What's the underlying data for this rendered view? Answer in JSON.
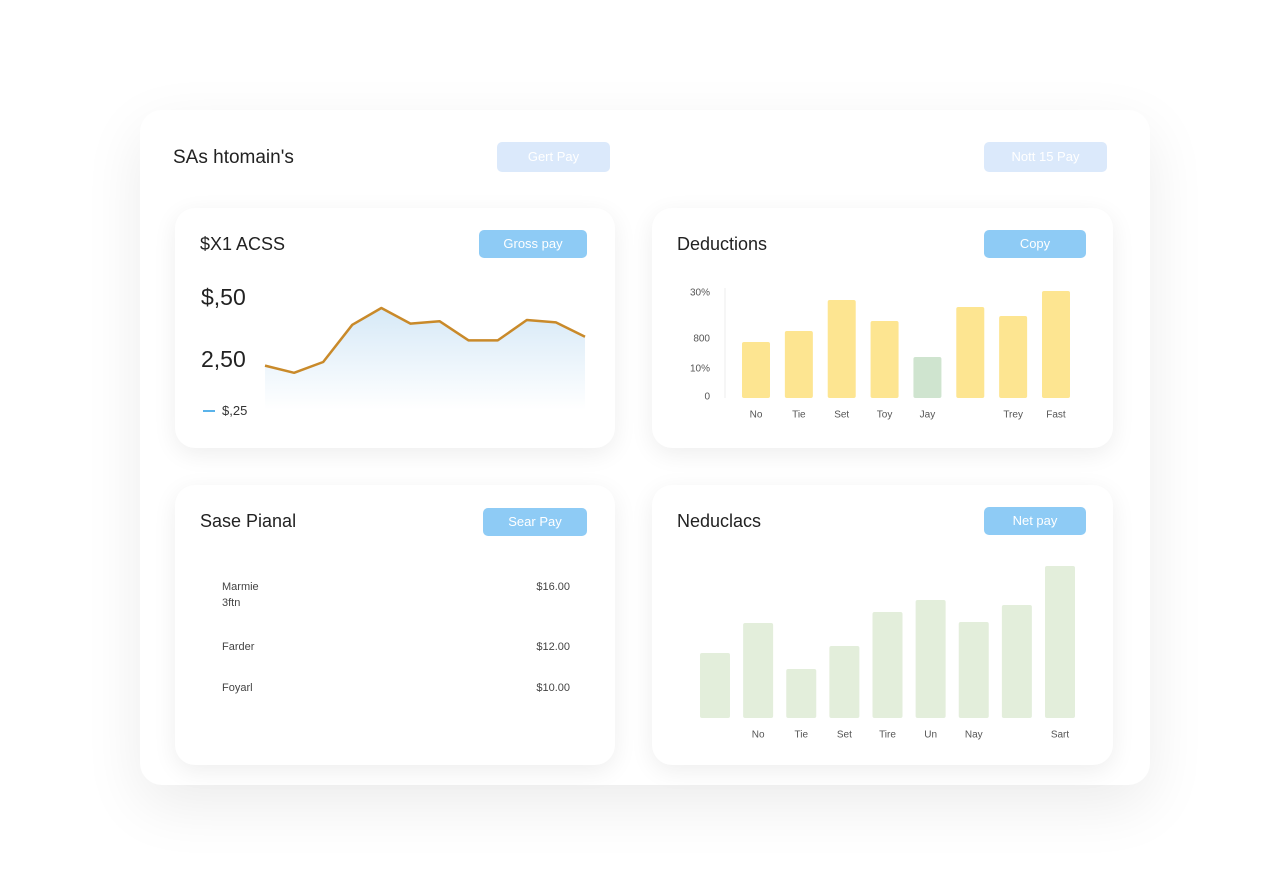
{
  "header": {
    "title": "SAs htomain's",
    "buttons": [
      "Gert Pay",
      "Nott 15 Pay"
    ]
  },
  "line_panel": {
    "title": "$X1 ACSS",
    "button": "Gross pay",
    "labels": [
      "$,50",
      "2,50",
      "$,25"
    ],
    "chart_data": {
      "type": "line",
      "color": "#c98a2a",
      "ylim": [
        0,
        100
      ],
      "values": [
        37,
        31,
        40,
        71,
        85,
        72,
        74,
        58,
        58,
        75,
        73,
        61
      ]
    }
  },
  "deductions_panel": {
    "title": "Deductions",
    "button": "Copy",
    "axis_labels": [
      "30%",
      "800",
      "10%",
      "0"
    ],
    "chart_data": {
      "type": "bar",
      "ylim": [
        0,
        120
      ],
      "categories": [
        "No",
        "Tie",
        "Set",
        "Toy",
        "Jay",
        null,
        "Trey",
        "Fast"
      ],
      "values": [
        56,
        67,
        98,
        77,
        41,
        91,
        82,
        107
      ],
      "colors": [
        "#fde591",
        "#fde591",
        "#fde591",
        "#fde591",
        "#cfe4cf",
        "#fde591",
        "#fde591",
        "#fde591"
      ]
    }
  },
  "table_panel": {
    "title": "Sase Pianal",
    "button": "Sear Pay",
    "rows": [
      [
        "Marmie\n3ftn",
        "$16.00"
      ],
      [
        "Farder",
        "$12.00"
      ],
      [
        "Foyarl",
        "$10.00"
      ]
    ]
  },
  "nebulacs_panel": {
    "title": "Neduclacs",
    "button": "Net pay",
    "chart_data": {
      "type": "bar",
      "ylim": [
        0,
        160
      ],
      "color": "#e3eedb",
      "categories": [
        null,
        "No",
        "Tie",
        "Set",
        "Tire",
        "Un",
        "Nay",
        null,
        "Sart"
      ],
      "values": [
        65,
        95,
        49,
        72,
        106,
        118,
        96,
        113,
        152
      ]
    }
  }
}
